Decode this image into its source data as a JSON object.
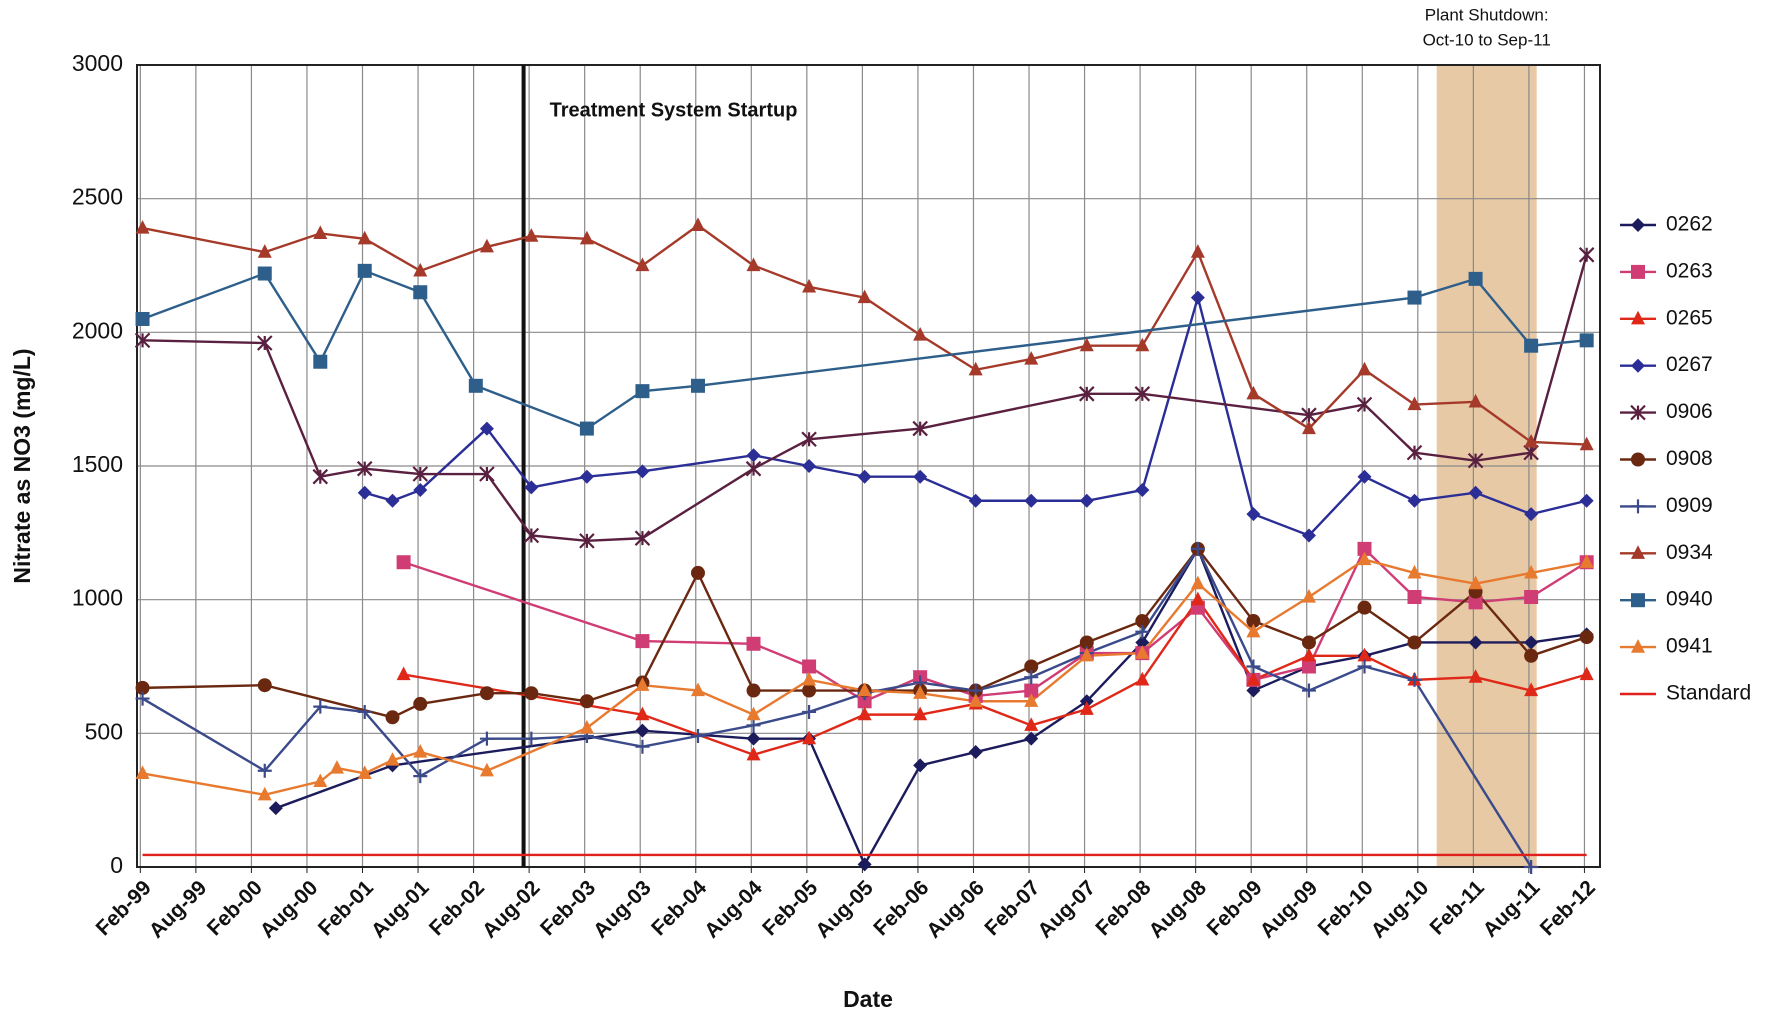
{
  "chart_data": {
    "type": "line",
    "x_label": "Date",
    "y_label": "Nitrate as NO3 (mg/L)",
    "xlim": [
      1999.05,
      2012.22
    ],
    "ylim": [
      0,
      3000
    ],
    "yticks": [
      0,
      500,
      1000,
      1500,
      2000,
      2500,
      3000
    ],
    "xticks": [
      {
        "value": 1999.08,
        "label": "Feb-99"
      },
      {
        "value": 1999.58,
        "label": "Aug-99"
      },
      {
        "value": 2000.08,
        "label": "Feb-00"
      },
      {
        "value": 2000.58,
        "label": "Aug-00"
      },
      {
        "value": 2001.08,
        "label": "Feb-01"
      },
      {
        "value": 2001.58,
        "label": "Aug-01"
      },
      {
        "value": 2002.08,
        "label": "Feb-02"
      },
      {
        "value": 2002.58,
        "label": "Aug-02"
      },
      {
        "value": 2003.08,
        "label": "Feb-03"
      },
      {
        "value": 2003.58,
        "label": "Aug-03"
      },
      {
        "value": 2004.08,
        "label": "Feb-04"
      },
      {
        "value": 2004.58,
        "label": "Aug-04"
      },
      {
        "value": 2005.08,
        "label": "Feb-05"
      },
      {
        "value": 2005.58,
        "label": "Aug-05"
      },
      {
        "value": 2006.08,
        "label": "Feb-06"
      },
      {
        "value": 2006.58,
        "label": "Aug-06"
      },
      {
        "value": 2007.08,
        "label": "Feb-07"
      },
      {
        "value": 2007.58,
        "label": "Aug-07"
      },
      {
        "value": 2008.08,
        "label": "Feb-08"
      },
      {
        "value": 2008.58,
        "label": "Aug-08"
      },
      {
        "value": 2009.08,
        "label": "Feb-09"
      },
      {
        "value": 2009.58,
        "label": "Aug-09"
      },
      {
        "value": 2010.08,
        "label": "Feb-10"
      },
      {
        "value": 2010.58,
        "label": "Aug-10"
      },
      {
        "value": 2011.08,
        "label": "Feb-11"
      },
      {
        "value": 2011.58,
        "label": "Aug-11"
      },
      {
        "value": 2012.08,
        "label": "Feb-12"
      }
    ],
    "grid": true,
    "legend": "right",
    "startup": {
      "label": "Treatment System Startup",
      "x": 2002.53
    },
    "shutdown": {
      "label_lines": [
        "Plant Shutdown:",
        "Oct-10 to Sep-11"
      ],
      "xrange": [
        2010.75,
        2011.65
      ],
      "color": "#e3bf95"
    },
    "series": [
      {
        "name": "0262",
        "color": "#1c1c5c",
        "marker": "diamond",
        "x": [
          2000.3,
          2001.35,
          2003.6,
          2004.6,
          2005.1,
          2005.6,
          2006.1,
          2006.6,
          2007.1,
          2007.6,
          2008.1,
          2008.6,
          2009.1,
          2009.6,
          2010.1,
          2010.55,
          2011.1,
          2011.6,
          2012.1
        ],
        "values": [
          220,
          380,
          510,
          480,
          480,
          10,
          380,
          430,
          480,
          620,
          840,
          1190,
          660,
          750,
          790,
          840,
          840,
          840,
          870
        ]
      },
      {
        "name": "0263",
        "color": "#d03c74",
        "marker": "square",
        "x": [
          2001.45,
          2003.6,
          2004.6,
          2005.1,
          2005.6,
          2006.1,
          2006.6,
          2007.1,
          2007.6,
          2008.1,
          2008.6,
          2009.1,
          2009.6,
          2010.1,
          2010.55,
          2011.1,
          2011.6,
          2012.1
        ],
        "values": [
          1140,
          845,
          835,
          750,
          620,
          710,
          640,
          660,
          800,
          800,
          970,
          700,
          750,
          1190,
          1010,
          990,
          1010,
          1140
        ]
      },
      {
        "name": "0265",
        "color": "#e02818",
        "marker": "triangle",
        "x": [
          2001.45,
          2003.6,
          2004.6,
          2005.1,
          2005.6,
          2006.1,
          2006.6,
          2007.1,
          2007.6,
          2008.1,
          2008.6,
          2009.1,
          2009.6,
          2010.1,
          2010.55,
          2011.1,
          2011.6,
          2012.1
        ],
        "values": [
          720,
          570,
          420,
          480,
          570,
          570,
          610,
          530,
          590,
          700,
          1000,
          700,
          790,
          790,
          700,
          710,
          660,
          720
        ]
      },
      {
        "name": "0267",
        "color": "#2a2e96",
        "marker": "diamond",
        "x": [
          2001.1,
          2001.35,
          2001.6,
          2002.2,
          2002.6,
          2003.1,
          2003.6,
          2004.6,
          2005.1,
          2005.6,
          2006.1,
          2006.6,
          2007.1,
          2007.6,
          2008.1,
          2008.6,
          2009.1,
          2009.6,
          2010.1,
          2010.55,
          2011.1,
          2011.6,
          2012.1
        ],
        "values": [
          1400,
          1370,
          1410,
          1640,
          1420,
          1460,
          1480,
          1540,
          1500,
          1460,
          1460,
          1370,
          1370,
          1370,
          1410,
          2130,
          1320,
          1240,
          1460,
          1370,
          1400,
          1320,
          1370
        ]
      },
      {
        "name": "0906",
        "color": "#5a2040",
        "marker": "x",
        "x": [
          1999.1,
          2000.2,
          2000.7,
          2001.1,
          2001.6,
          2002.2,
          2002.6,
          2003.1,
          2003.6,
          2004.6,
          2005.1,
          2006.1,
          2007.6,
          2008.1,
          2009.6,
          2010.1,
          2010.55,
          2011.1,
          2011.6,
          2012.1
        ],
        "values": [
          1970,
          1960,
          1460,
          1490,
          1470,
          1470,
          1240,
          1220,
          1230,
          1490,
          1600,
          1640,
          1770,
          1770,
          1690,
          1730,
          1550,
          1520,
          1550,
          2290
        ]
      },
      {
        "name": "0908",
        "color": "#6b2810",
        "marker": "circle",
        "x": [
          1999.1,
          2000.2,
          2001.35,
          2001.6,
          2002.2,
          2002.6,
          2003.1,
          2003.6,
          2004.1,
          2004.6,
          2005.1,
          2005.6,
          2006.1,
          2006.6,
          2007.1,
          2007.6,
          2008.1,
          2008.6,
          2009.1,
          2009.6,
          2010.1,
          2010.55,
          2011.1,
          2011.6,
          2012.1
        ],
        "values": [
          670,
          680,
          560,
          610,
          650,
          650,
          620,
          690,
          1100,
          660,
          660,
          660,
          660,
          660,
          750,
          840,
          920,
          1190,
          920,
          840,
          970,
          840,
          1030,
          790,
          860
        ]
      },
      {
        "name": "0909",
        "color": "#3a4a8a",
        "marker": "plus",
        "x": [
          1999.1,
          2000.2,
          2000.7,
          2001.1,
          2001.6,
          2002.2,
          2002.6,
          2003.1,
          2003.6,
          2004.1,
          2004.6,
          2005.1,
          2005.6,
          2006.1,
          2006.6,
          2007.1,
          2007.6,
          2008.1,
          2008.6,
          2009.1,
          2009.6,
          2010.1,
          2010.55,
          2011.6
        ],
        "values": [
          630,
          360,
          600,
          580,
          340,
          480,
          480,
          490,
          450,
          490,
          530,
          580,
          650,
          690,
          660,
          710,
          800,
          880,
          1190,
          750,
          660,
          750,
          700,
          0
        ]
      },
      {
        "name": "0934",
        "color": "#a53a2a",
        "marker": "triangle",
        "x": [
          1999.1,
          2000.2,
          2000.7,
          2001.1,
          2001.6,
          2002.2,
          2002.6,
          2003.1,
          2003.6,
          2004.1,
          2004.6,
          2005.1,
          2005.6,
          2006.1,
          2006.6,
          2007.1,
          2007.6,
          2008.1,
          2008.6,
          2009.1,
          2009.6,
          2010.1,
          2010.55,
          2011.1,
          2011.6,
          2012.1
        ],
        "values": [
          2390,
          2300,
          2370,
          2350,
          2230,
          2320,
          2360,
          2350,
          2250,
          2400,
          2250,
          2170,
          2130,
          1990,
          1860,
          1900,
          1950,
          1950,
          2300,
          1770,
          1640,
          1860,
          1730,
          1740,
          1590,
          1580
        ]
      },
      {
        "name": "0940",
        "color": "#2e5f8a",
        "marker": "square",
        "x": [
          1999.1,
          2000.2,
          2000.7,
          2001.1,
          2001.6,
          2002.1,
          2003.1,
          2003.6,
          2004.1,
          2010.55,
          2011.1,
          2011.6,
          2012.1
        ],
        "values": [
          2050,
          2220,
          1890,
          2230,
          2150,
          1800,
          1640,
          1780,
          1800,
          2130,
          2200,
          1950,
          1970
        ]
      },
      {
        "name": "0941",
        "color": "#e87a30",
        "marker": "triangle",
        "x": [
          1999.1,
          2000.2,
          2000.7,
          2000.85,
          2001.1,
          2001.35,
          2001.6,
          2002.2,
          2003.1,
          2003.6,
          2004.1,
          2004.6,
          2005.1,
          2005.6,
          2006.1,
          2006.6,
          2007.1,
          2007.6,
          2008.1,
          2008.6,
          2009.1,
          2009.6,
          2010.1,
          2010.55,
          2011.1,
          2011.6,
          2012.1
        ],
        "values": [
          350,
          270,
          320,
          370,
          350,
          400,
          430,
          360,
          520,
          680,
          660,
          570,
          700,
          660,
          650,
          620,
          620,
          790,
          800,
          1060,
          880,
          1010,
          1150,
          1100,
          1060,
          1100,
          1140
        ]
      },
      {
        "name": "Standard",
        "color": "#e0201c",
        "marker": "none",
        "x": [
          1999.1,
          2012.1
        ],
        "values": [
          45,
          45
        ]
      }
    ]
  }
}
